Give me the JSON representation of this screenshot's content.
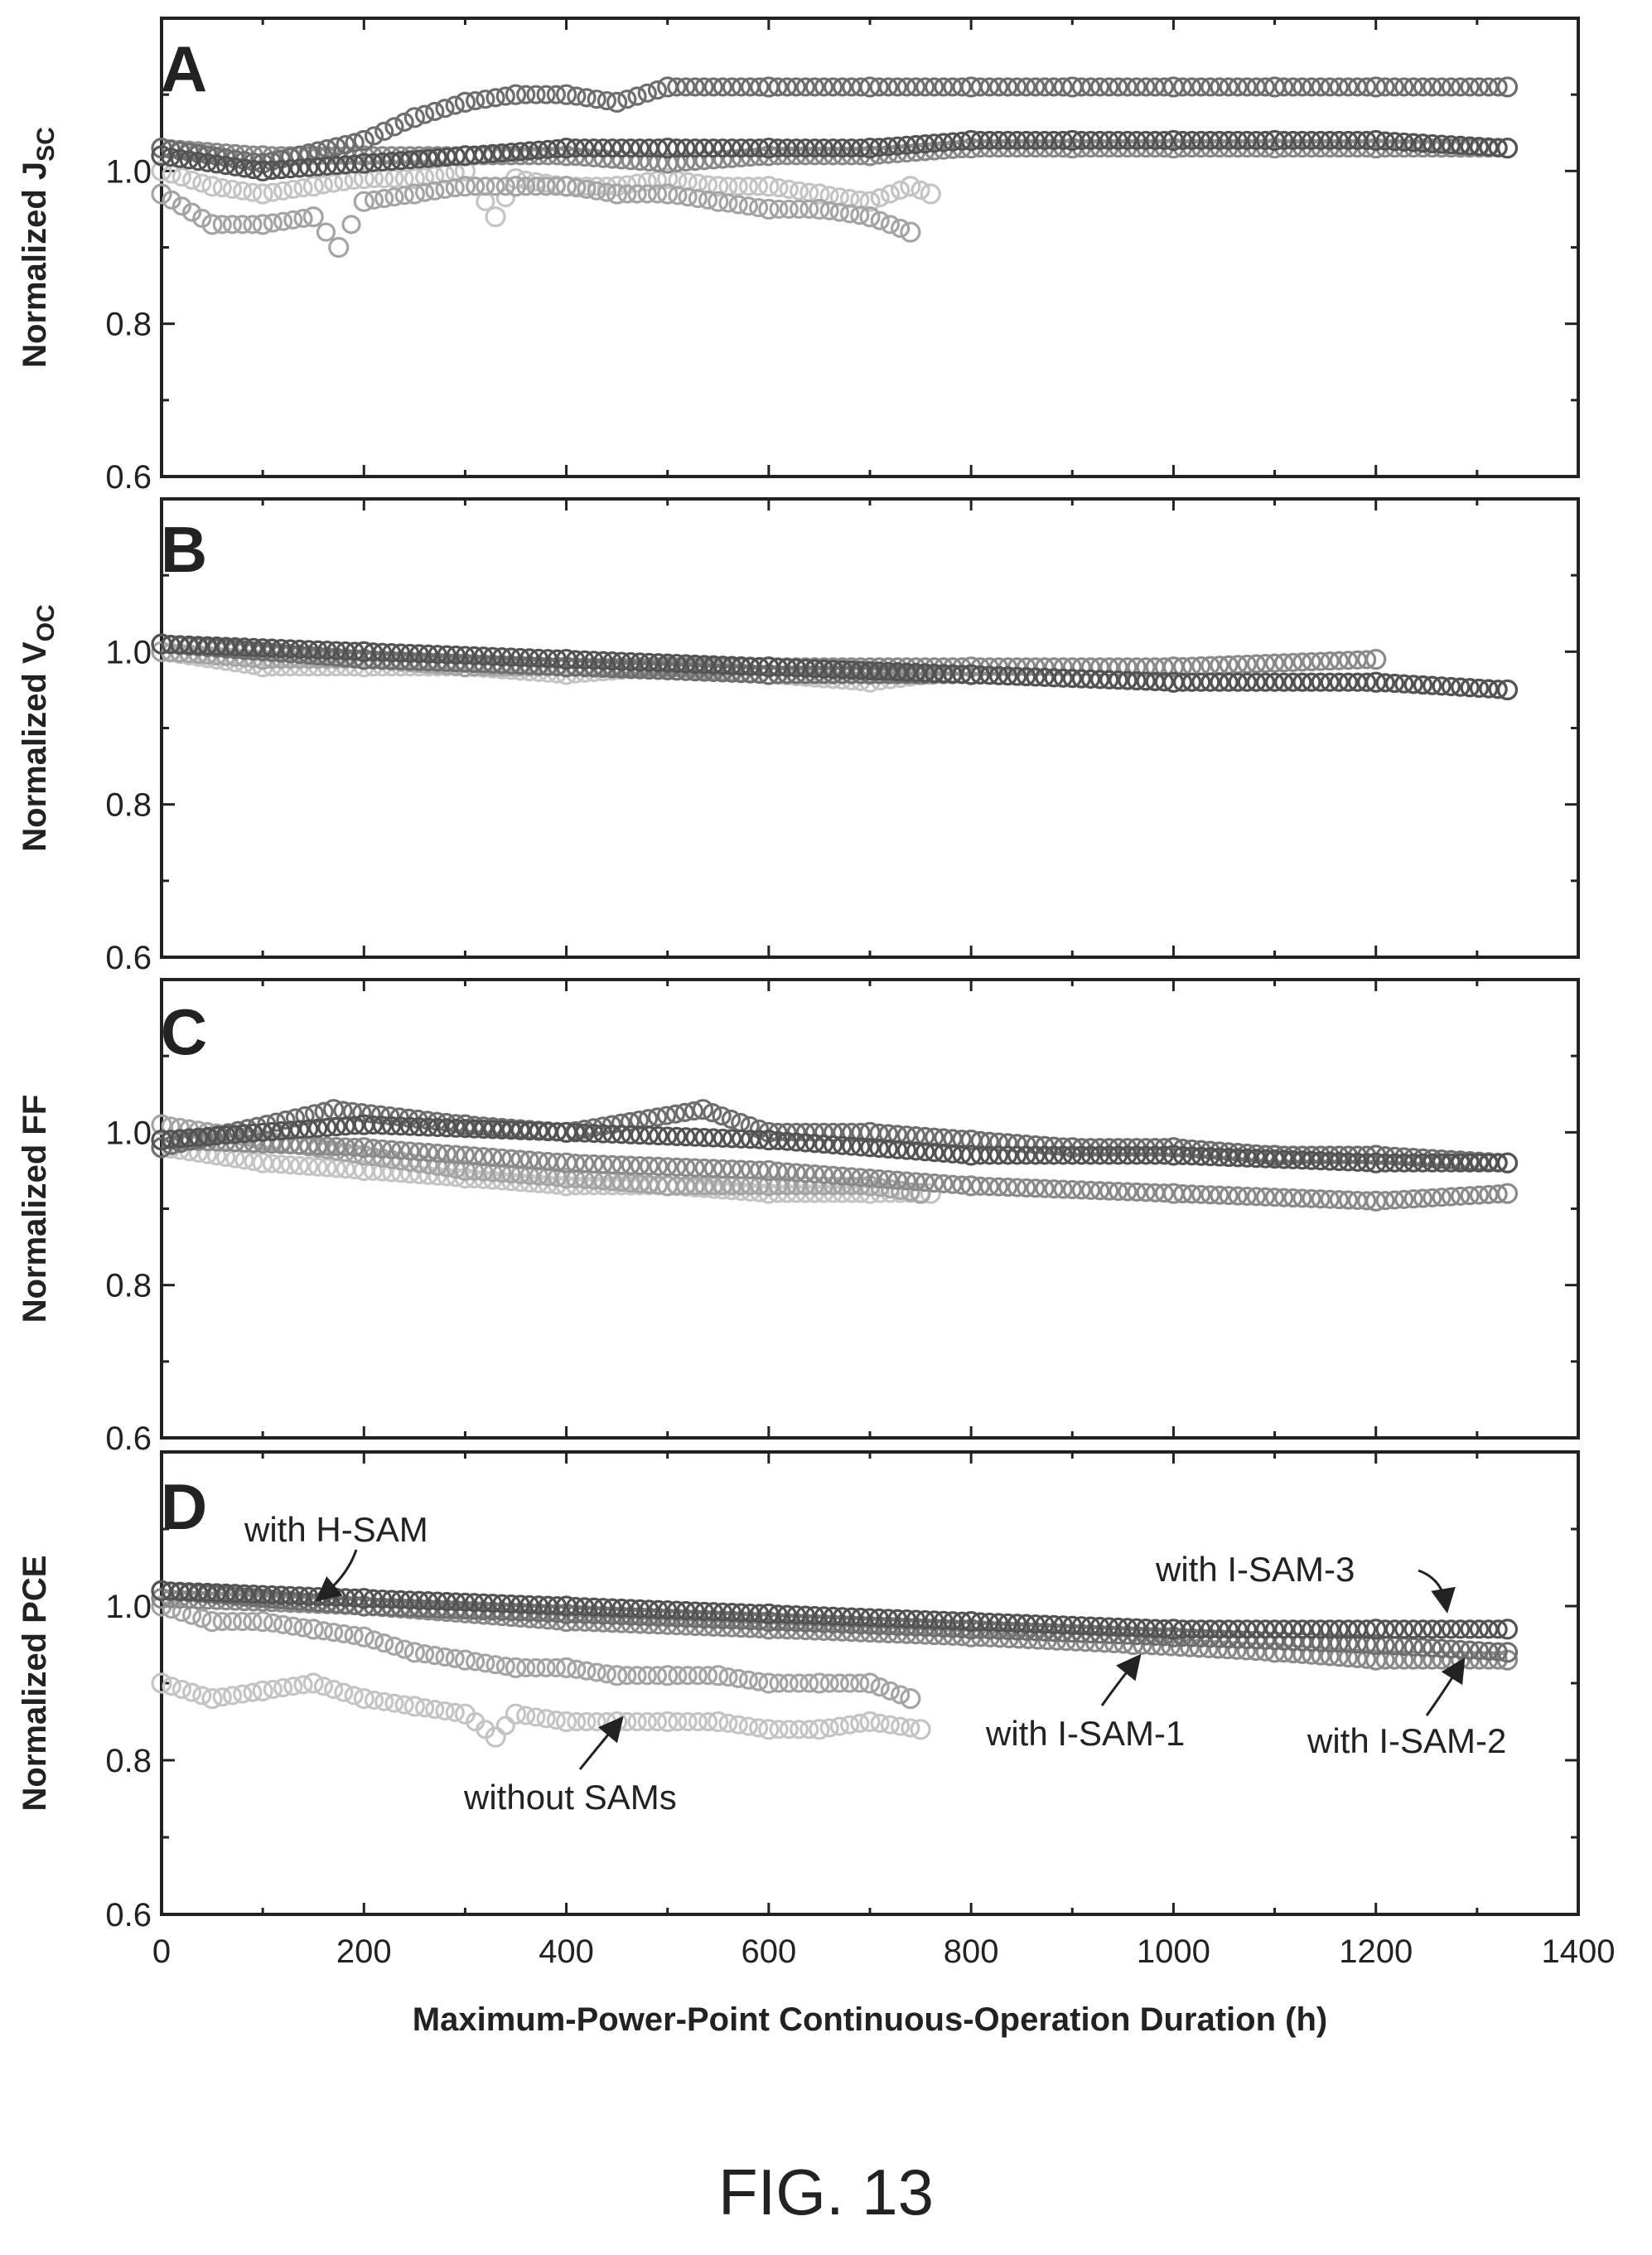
{
  "figure": {
    "caption": "FIG. 13"
  },
  "colors": {
    "without_sams": "#c4c4c4",
    "with_h_sam": "#a4a4a4",
    "with_i_sam_1": "#8a8a8a",
    "with_i_sam_2": "#6e6e6e",
    "with_i_sam_3": "#535353"
  },
  "chart_data": [
    {
      "type": "scatter",
      "panel": "A",
      "ylabel": "Normalized J",
      "ylabel_sub": "SC",
      "xlim": [
        0,
        1400
      ],
      "ylim": [
        0.6,
        1.2
      ],
      "y_ticks": [
        "0.6",
        "0.8",
        "1.0"
      ],
      "grid": false,
      "series": [
        {
          "key": "without_sams",
          "x": [
            0,
            50,
            100,
            150,
            200,
            250,
            300,
            330,
            350,
            400,
            450,
            500,
            550,
            600,
            650,
            700,
            740,
            760
          ],
          "y": [
            1.0,
            0.98,
            0.97,
            0.98,
            0.99,
            0.99,
            1.0,
            0.94,
            0.99,
            0.98,
            0.98,
            0.99,
            0.98,
            0.98,
            0.97,
            0.96,
            0.98,
            0.97
          ]
        },
        {
          "key": "with_h_sam",
          "x": [
            0,
            50,
            100,
            150,
            175,
            200,
            250,
            300,
            350,
            400,
            450,
            500,
            550,
            600,
            650,
            700,
            740
          ],
          "y": [
            0.97,
            0.93,
            0.93,
            0.94,
            0.9,
            0.96,
            0.97,
            0.98,
            0.98,
            0.98,
            0.97,
            0.97,
            0.96,
            0.95,
            0.95,
            0.94,
            0.92
          ]
        },
        {
          "key": "with_i_sam_1",
          "x": [
            0,
            100,
            200,
            300,
            400,
            500,
            600,
            700,
            800,
            900,
            1000,
            1100,
            1200,
            1330
          ],
          "y": [
            1.03,
            1.02,
            1.02,
            1.02,
            1.02,
            1.01,
            1.02,
            1.02,
            1.03,
            1.03,
            1.03,
            1.03,
            1.03,
            1.03
          ]
        },
        {
          "key": "with_i_sam_2",
          "x": [
            0,
            100,
            200,
            250,
            300,
            350,
            400,
            450,
            500,
            600,
            700,
            800,
            900,
            1000,
            1100,
            1200,
            1330
          ],
          "y": [
            1.03,
            1.01,
            1.04,
            1.07,
            1.09,
            1.1,
            1.1,
            1.09,
            1.11,
            1.11,
            1.11,
            1.11,
            1.11,
            1.11,
            1.11,
            1.11,
            1.11
          ]
        },
        {
          "key": "with_i_sam_3",
          "x": [
            0,
            100,
            200,
            300,
            400,
            500,
            600,
            700,
            800,
            900,
            1000,
            1100,
            1200,
            1330
          ],
          "y": [
            1.02,
            1.0,
            1.01,
            1.02,
            1.03,
            1.03,
            1.03,
            1.03,
            1.04,
            1.04,
            1.04,
            1.04,
            1.04,
            1.03
          ]
        }
      ]
    },
    {
      "type": "scatter",
      "panel": "B",
      "ylabel": "Normalized V",
      "ylabel_sub": "OC",
      "xlim": [
        0,
        1400
      ],
      "ylim": [
        0.6,
        1.2
      ],
      "y_ticks": [
        "0.6",
        "0.8",
        "1.0"
      ],
      "grid": false,
      "series": [
        {
          "key": "without_sams",
          "x": [
            0,
            100,
            200,
            300,
            400,
            500,
            600,
            700,
            760
          ],
          "y": [
            1.0,
            0.98,
            0.98,
            0.98,
            0.97,
            0.98,
            0.97,
            0.96,
            0.97
          ]
        },
        {
          "key": "with_h_sam",
          "x": [
            0,
            100,
            200,
            300,
            400,
            500,
            600,
            700,
            750
          ],
          "y": [
            1.0,
            0.99,
            0.99,
            0.98,
            0.98,
            0.98,
            0.97,
            0.97,
            0.97
          ]
        },
        {
          "key": "with_i_sam_1",
          "x": [
            0,
            200,
            400,
            600,
            800,
            1000,
            1200
          ],
          "y": [
            1.01,
            0.99,
            0.98,
            0.98,
            0.98,
            0.98,
            0.99
          ]
        },
        {
          "key": "with_i_sam_2",
          "x": [
            0,
            200,
            400,
            600,
            800,
            1000,
            1200,
            1330
          ],
          "y": [
            1.01,
            0.99,
            0.98,
            0.97,
            0.97,
            0.96,
            0.96,
            0.95
          ]
        },
        {
          "key": "with_i_sam_3",
          "x": [
            0,
            200,
            400,
            600,
            800,
            1000,
            1200,
            1330
          ],
          "y": [
            1.01,
            1.0,
            0.99,
            0.98,
            0.97,
            0.96,
            0.96,
            0.95
          ]
        }
      ]
    },
    {
      "type": "scatter",
      "panel": "C",
      "ylabel": "Normalized FF",
      "xlim": [
        0,
        1400
      ],
      "ylim": [
        0.6,
        1.2
      ],
      "y_ticks": [
        "0.6",
        "0.8",
        "1.0"
      ],
      "grid": false,
      "series": [
        {
          "key": "without_sams",
          "x": [
            0,
            100,
            200,
            300,
            400,
            500,
            600,
            700,
            760
          ],
          "y": [
            0.98,
            0.96,
            0.95,
            0.94,
            0.93,
            0.93,
            0.92,
            0.92,
            0.92
          ]
        },
        {
          "key": "with_h_sam",
          "x": [
            0,
            100,
            200,
            300,
            400,
            500,
            600,
            700,
            750
          ],
          "y": [
            1.01,
            0.99,
            0.97,
            0.95,
            0.94,
            0.93,
            0.93,
            0.93,
            0.92
          ]
        },
        {
          "key": "with_i_sam_1",
          "x": [
            0,
            200,
            400,
            600,
            800,
            1000,
            1200,
            1330
          ],
          "y": [
            0.99,
            0.98,
            0.96,
            0.95,
            0.93,
            0.92,
            0.91,
            0.92
          ]
        },
        {
          "key": "with_i_sam_2",
          "x": [
            0,
            170,
            300,
            400,
            535,
            600,
            700,
            800,
            900,
            1000,
            1100,
            1200,
            1330
          ],
          "y": [
            0.98,
            1.03,
            1.01,
            1.0,
            1.03,
            1.0,
            1.0,
            0.99,
            0.98,
            0.98,
            0.97,
            0.97,
            0.96
          ]
        },
        {
          "key": "with_i_sam_3",
          "x": [
            0,
            200,
            400,
            600,
            800,
            1000,
            1200,
            1330
          ],
          "y": [
            0.99,
            1.01,
            1.0,
            0.99,
            0.97,
            0.97,
            0.96,
            0.96
          ]
        }
      ]
    },
    {
      "type": "scatter",
      "panel": "D",
      "ylabel": "Normalized PCE",
      "xlabel": "Maximum-Power-Point Continuous-Operation Duration (h)",
      "xlim": [
        0,
        1400
      ],
      "x_ticks": [
        "0",
        "200",
        "400",
        "600",
        "800",
        "1000",
        "1200",
        "1400"
      ],
      "ylim": [
        0.6,
        1.2
      ],
      "y_ticks": [
        "0.6",
        "0.8",
        "1.0"
      ],
      "grid": false,
      "annotations": [
        {
          "text": "with H-SAM"
        },
        {
          "text": "without SAMs"
        },
        {
          "text": "with I-SAM-1"
        },
        {
          "text": "with I-SAM-2"
        },
        {
          "text": "with I-SAM-3"
        }
      ],
      "series": [
        {
          "key": "without_sams",
          "x": [
            0,
            50,
            100,
            150,
            200,
            250,
            300,
            330,
            350,
            400,
            450,
            500,
            550,
            600,
            650,
            700,
            750
          ],
          "y": [
            0.9,
            0.88,
            0.89,
            0.9,
            0.88,
            0.87,
            0.86,
            0.83,
            0.86,
            0.85,
            0.85,
            0.85,
            0.85,
            0.84,
            0.84,
            0.85,
            0.84
          ]
        },
        {
          "key": "with_h_sam",
          "x": [
            0,
            50,
            100,
            150,
            200,
            250,
            300,
            350,
            400,
            450,
            500,
            550,
            600,
            650,
            700,
            740
          ],
          "y": [
            1.0,
            0.98,
            0.98,
            0.97,
            0.96,
            0.94,
            0.93,
            0.92,
            0.92,
            0.91,
            0.91,
            0.91,
            0.9,
            0.9,
            0.9,
            0.88
          ]
        },
        {
          "key": "with_i_sam_1",
          "x": [
            0,
            200,
            400,
            600,
            800,
            960,
            1100,
            1200,
            1330
          ],
          "y": [
            1.01,
            1.0,
            0.98,
            0.97,
            0.96,
            0.95,
            0.94,
            0.93,
            0.93
          ]
        },
        {
          "key": "with_i_sam_2",
          "x": [
            0,
            200,
            400,
            600,
            800,
            1000,
            1200,
            1330
          ],
          "y": [
            1.02,
            1.0,
            0.99,
            0.98,
            0.97,
            0.96,
            0.95,
            0.94
          ]
        },
        {
          "key": "with_i_sam_3",
          "x": [
            0,
            200,
            400,
            600,
            800,
            1000,
            1200,
            1330
          ],
          "y": [
            1.02,
            1.01,
            1.0,
            0.99,
            0.98,
            0.97,
            0.97,
            0.97
          ]
        }
      ]
    }
  ]
}
